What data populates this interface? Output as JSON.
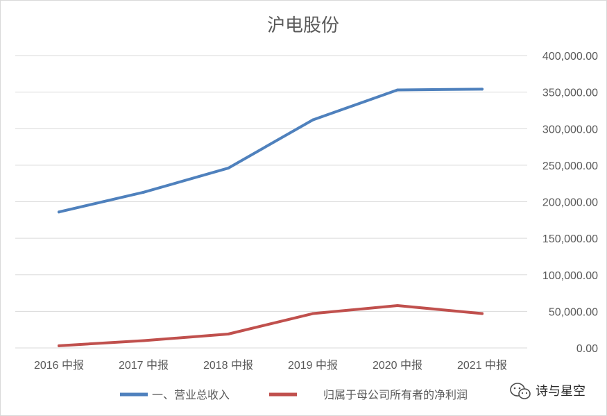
{
  "chart_data": {
    "type": "line",
    "title": "沪电股份",
    "categories": [
      "2016 中报",
      "2017 中报",
      "2018 中报",
      "2019 中报",
      "2020 中报",
      "2021 中报"
    ],
    "series": [
      {
        "name": "一、营业总收入",
        "color": "#4f81bd",
        "values": [
          186000,
          213000,
          246000,
          312000,
          353000,
          354000
        ]
      },
      {
        "name": "归属于母公司所有者的净利润",
        "color": "#c0504d",
        "values": [
          3000,
          10000,
          19000,
          47000,
          58000,
          47000
        ]
      }
    ],
    "y_ticks": [
      "0.00",
      "50,000.00",
      "100,000.00",
      "150,000.00",
      "200,000.00",
      "250,000.00",
      "300,000.00",
      "350,000.00",
      "400,000.00"
    ],
    "ylim": [
      0,
      400000
    ],
    "y_axis_side": "right",
    "grid": true,
    "legend": "bottom"
  },
  "watermark": {
    "text": "诗与星空",
    "icon": "wechat-icon"
  }
}
